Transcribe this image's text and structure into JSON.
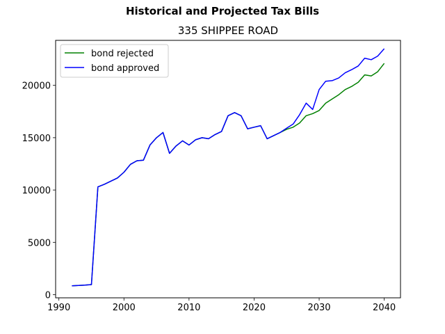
{
  "figure": {
    "suptitle": "Historical and Projected Tax Bills",
    "title": "335 SHIPPEE ROAD"
  },
  "chart_data": {
    "type": "line",
    "xlim": [
      1989.5,
      2042.5
    ],
    "ylim": [
      -300,
      24300
    ],
    "xticks": [
      1990,
      2000,
      2010,
      2020,
      2030,
      2040
    ],
    "yticks": [
      0,
      5000,
      10000,
      15000,
      20000
    ],
    "legend_position": "upper-left",
    "grid": false,
    "series": [
      {
        "name": "bond rejected",
        "color": "#008000",
        "x": [
          1992,
          1993,
          1994,
          1995,
          1996,
          1997,
          1998,
          1999,
          2000,
          2001,
          2002,
          2003,
          2004,
          2005,
          2006,
          2007,
          2008,
          2009,
          2010,
          2011,
          2012,
          2013,
          2014,
          2015,
          2016,
          2017,
          2018,
          2019,
          2020,
          2021,
          2022,
          2023,
          2024,
          2025,
          2026,
          2027,
          2028,
          2029,
          2030,
          2031,
          2032,
          2033,
          2034,
          2035,
          2036,
          2037,
          2038,
          2039,
          2040
        ],
        "y": [
          850,
          880,
          920,
          960,
          10300,
          10550,
          10850,
          11150,
          11700,
          12450,
          12800,
          12850,
          14300,
          15000,
          15500,
          13500,
          14200,
          14700,
          14300,
          14800,
          15000,
          14900,
          15300,
          15600,
          17100,
          17400,
          17100,
          15850,
          16000,
          16150,
          14900,
          15200,
          15500,
          15800,
          16000,
          16400,
          17100,
          17300,
          17600,
          18300,
          18700,
          19100,
          19600,
          19900,
          20300,
          21000,
          20900,
          21300,
          22100
        ]
      },
      {
        "name": "bond approved",
        "color": "#0000ff",
        "x": [
          1992,
          1993,
          1994,
          1995,
          1996,
          1997,
          1998,
          1999,
          2000,
          2001,
          2002,
          2003,
          2004,
          2005,
          2006,
          2007,
          2008,
          2009,
          2010,
          2011,
          2012,
          2013,
          2014,
          2015,
          2016,
          2017,
          2018,
          2019,
          2020,
          2021,
          2022,
          2023,
          2024,
          2025,
          2026,
          2027,
          2028,
          2029,
          2030,
          2031,
          2032,
          2033,
          2034,
          2035,
          2036,
          2037,
          2038,
          2039,
          2040
        ],
        "y": [
          850,
          880,
          920,
          960,
          10300,
          10550,
          10850,
          11150,
          11700,
          12450,
          12800,
          12850,
          14300,
          15000,
          15500,
          13500,
          14200,
          14700,
          14300,
          14800,
          15000,
          14900,
          15300,
          15600,
          17100,
          17400,
          17100,
          15850,
          16000,
          16150,
          14900,
          15200,
          15500,
          15900,
          16300,
          17200,
          18300,
          17700,
          19600,
          20400,
          20450,
          20700,
          21200,
          21500,
          21850,
          22600,
          22450,
          22800,
          23500
        ]
      }
    ]
  }
}
